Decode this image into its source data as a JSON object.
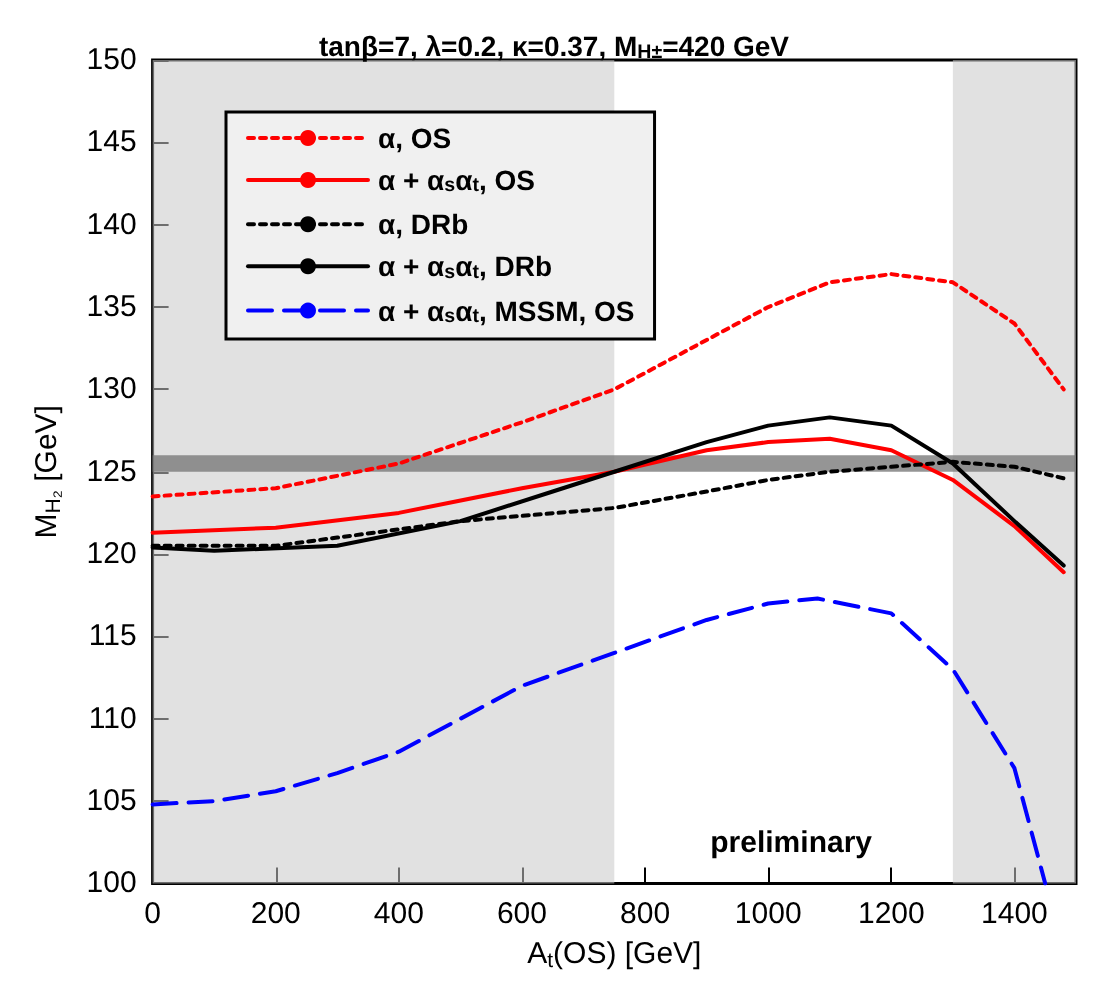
{
  "chart_data": {
    "type": "line",
    "title": "tanβ=7, λ=0.2, κ=0.37, M$_{H±}$=420 GeV",
    "xlabel": "A$_{t}$(OS) [GeV]",
    "ylabel": "M$_{H₂}$ [GeV]",
    "xlim": [
      0,
      1500
    ],
    "ylim": [
      100,
      150
    ],
    "xticks": [
      0,
      200,
      400,
      600,
      800,
      1000,
      1200,
      1400
    ],
    "yticks": [
      100,
      105,
      110,
      115,
      120,
      125,
      130,
      135,
      140,
      145,
      150
    ],
    "grid": false,
    "legend": "top left",
    "marker": "none",
    "series": [
      {
        "name": "α, OS",
        "color": "#ff0000",
        "line_style": "dotted",
        "x": [
          0,
          200,
          400,
          600,
          750,
          900,
          1000,
          1100,
          1200,
          1300,
          1400,
          1480
        ],
        "values": [
          123.5,
          124,
          125.5,
          128,
          130,
          133,
          135,
          136.5,
          137,
          136.5,
          134,
          130
        ]
      },
      {
        "name": "α + α$_{s}$α$_{t}$, OS",
        "color": "#ff0000",
        "line_style": "solid",
        "x": [
          0,
          200,
          400,
          600,
          750,
          900,
          1000,
          1100,
          1200,
          1300,
          1400,
          1480
        ],
        "values": [
          121.3,
          121.6,
          122.5,
          124,
          125,
          126.3,
          126.8,
          127,
          126.3,
          124.5,
          121.7,
          118.9
        ]
      },
      {
        "name": "α, DRb",
        "color": "#000000",
        "line_style": "dotted",
        "x": [
          0,
          200,
          300,
          500,
          750,
          900,
          1000,
          1100,
          1200,
          1300,
          1400,
          1480
        ],
        "values": [
          120.5,
          120.5,
          121,
          122,
          122.8,
          123.8,
          124.5,
          125,
          125.3,
          125.6,
          125.3,
          124.6
        ]
      },
      {
        "name": "α + α$_{s}$α$_{t}$, DRb",
        "color": "#000000",
        "line_style": "solid",
        "x": [
          0,
          100,
          300,
          500,
          650,
          750,
          900,
          1000,
          1100,
          1200,
          1300,
          1400,
          1480
        ],
        "values": [
          120.4,
          120.2,
          120.5,
          122,
          123.8,
          125,
          126.8,
          127.8,
          128.3,
          127.8,
          125.5,
          122,
          119.3
        ]
      },
      {
        "name": "α + α$_{s}$α$_{t}$, MSSM, OS",
        "color": "#0000ff",
        "line_style": "dashed",
        "x": [
          0,
          100,
          200,
          300,
          400,
          500,
          600,
          750,
          900,
          1000,
          1080,
          1200,
          1300,
          1400,
          1450
        ],
        "values": [
          104.8,
          105,
          105.6,
          106.7,
          108,
          110,
          112,
          114,
          116,
          117,
          117.3,
          116.4,
          113,
          107,
          100
        ]
      }
    ],
    "bands": [
      {
        "axis": "x",
        "from": 0,
        "to": 750,
        "color": "#c8c8c8"
      },
      {
        "axis": "x",
        "from": 1300,
        "to": 1500,
        "color": "#c8c8c8"
      },
      {
        "axis": "y",
        "from": 125,
        "to": 126,
        "color": "#7a7a7a"
      }
    ],
    "annotations": [
      "preliminary"
    ]
  }
}
